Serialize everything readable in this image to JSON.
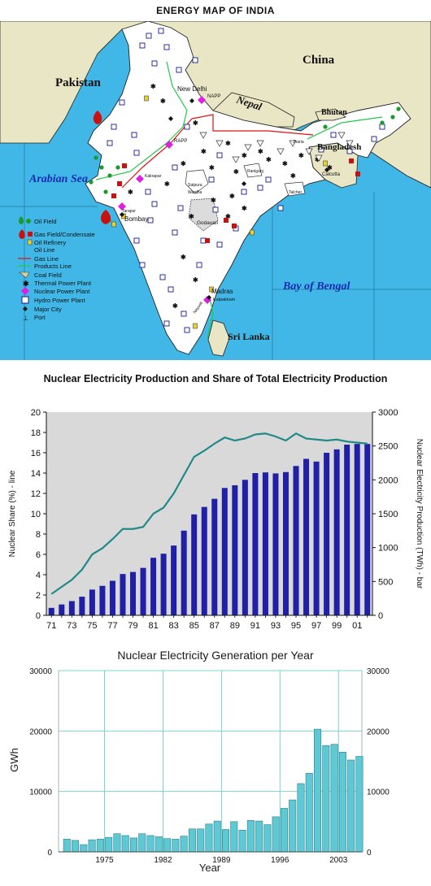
{
  "map": {
    "title": "ENERGY MAP OF INDIA",
    "colors": {
      "sea": "#40b7e6",
      "land": "#ffffff",
      "neighbor": "#e9e6c5",
      "border": "#222222"
    },
    "regions": {
      "pakistan": "Pakistan",
      "china": "China",
      "nepal": "Nepal",
      "bhutan": "Bhutan",
      "bangladesh": "Bangladesh",
      "arabian_sea": "Arabian Sea",
      "bay_of_bengal": "Bay of Bengal",
      "sri_lanka": "Sri Lanka"
    },
    "cities": {
      "new_delhi": "New Delhi",
      "bombay": "Bombay",
      "madras": "Madras",
      "calcutta": "Calcutta"
    },
    "plant_labels": {
      "napp": "NAPP",
      "rapp": "RAPP",
      "kakrapar": "Kakrapar",
      "tarapur": "Tarapur",
      "kalpakkam": "Kalpakkam"
    },
    "places": {
      "godavari": "Godavari",
      "talcher": "Talcher",
      "wardha": "Wardha",
      "satpura": "Satpura",
      "jharia": "Jharia",
      "raniganj": "Raniganj",
      "neyveli": "Neyveli"
    },
    "legend": [
      {
        "icon": "oil-field-icon",
        "label": "Oil Field"
      },
      {
        "icon": "gas-field-icon",
        "label": "Gas Field/Condensate"
      },
      {
        "icon": "oil-refinery-icon",
        "label": "Oil Refinery"
      },
      {
        "icon": "oil-line-icon",
        "label": "Oil Line"
      },
      {
        "icon": "gas-line-icon",
        "label": "Gas Line"
      },
      {
        "icon": "products-line-icon",
        "label": "Products Line"
      },
      {
        "icon": "coal-field-icon",
        "label": "Coal Field"
      },
      {
        "icon": "thermal-plant-icon",
        "label": "Thermal Power Plant"
      },
      {
        "icon": "nuclear-plant-icon",
        "label": "Nuclear Power Plant"
      },
      {
        "icon": "hydro-plant-icon",
        "label": "Hydro Power Plant"
      },
      {
        "icon": "major-city-icon",
        "label": "Major City"
      },
      {
        "icon": "port-icon",
        "label": "Port"
      }
    ]
  },
  "chart_data": [
    {
      "type": "bar",
      "title": "Nuclear Electricity Production and Share of Total Electricity Production",
      "ylabel_left": "Nuclear Share (%) - line",
      "ylabel_right": "Nuclear Electricity Production (TWh) - bar",
      "ylim_left": [
        0,
        20
      ],
      "ylim_right": [
        0,
        3000
      ],
      "yticks_left": [
        "0",
        "2",
        "4",
        "6",
        "8",
        "10",
        "12",
        "14",
        "16",
        "18",
        "20"
      ],
      "yticks_right": [
        "0",
        "500",
        "1000",
        "1500",
        "2000",
        "2500",
        "3000"
      ],
      "xtick_labels": [
        "71",
        "73",
        "75",
        "77",
        "79",
        "81",
        "83",
        "85",
        "87",
        "89",
        "91",
        "93",
        "95",
        "97",
        "99",
        "01"
      ],
      "years": [
        1971,
        1972,
        1973,
        1974,
        1975,
        1976,
        1977,
        1978,
        1979,
        1980,
        1981,
        1982,
        1983,
        1984,
        1985,
        1986,
        1987,
        1988,
        1989,
        1990,
        1991,
        1992,
        1993,
        1994,
        1995,
        1996,
        1997,
        1998,
        1999,
        2000,
        2001,
        2002
      ],
      "bar_values": [
        110,
        160,
        210,
        275,
        380,
        435,
        510,
        610,
        640,
        700,
        850,
        910,
        1030,
        1250,
        1490,
        1600,
        1720,
        1880,
        1920,
        2000,
        2100,
        2110,
        2095,
        2115,
        2205,
        2310,
        2270,
        2400,
        2450,
        2520,
        2530,
        2530
      ],
      "line_values": [
        2.1,
        2.8,
        3.5,
        4.5,
        6.0,
        6.6,
        7.5,
        8.5,
        8.5,
        8.7,
        10.0,
        10.6,
        12.0,
        13.8,
        15.6,
        16.2,
        16.9,
        17.5,
        17.2,
        17.4,
        17.8,
        17.9,
        17.6,
        17.2,
        17.9,
        17.4,
        17.3,
        17.2,
        17.3,
        17.1,
        17.0,
        16.9
      ],
      "series": [
        {
          "name": "Nuclear Share (%) - line",
          "color": "#218a87"
        },
        {
          "name": "Nuclear Electricity Production (TWh) - bar",
          "color": "#1f1fa8"
        }
      ],
      "grid": false
    },
    {
      "type": "bar",
      "title": "Nuclear Electricity Generation per Year",
      "xlabel": "Year",
      "ylabel": "GWh",
      "ylim": [
        0,
        30000
      ],
      "yticks": [
        "0",
        "10000",
        "20000",
        "30000"
      ],
      "xtick_labels": [
        "1975",
        "1982",
        "1989",
        "1996",
        "2003"
      ],
      "x": [
        1970,
        1971,
        1972,
        1973,
        1974,
        1975,
        1976,
        1977,
        1978,
        1979,
        1980,
        1981,
        1982,
        1983,
        1984,
        1985,
        1986,
        1987,
        1988,
        1989,
        1990,
        1991,
        1992,
        1993,
        1994,
        1995,
        1996,
        1997,
        1998,
        1999,
        2000,
        2001,
        2002,
        2003,
        2004,
        2005
      ],
      "values": [
        2100,
        1900,
        1200,
        2000,
        2100,
        2400,
        3000,
        2700,
        2300,
        3000,
        2700,
        2500,
        2200,
        2100,
        2600,
        3800,
        3800,
        4600,
        5100,
        3700,
        5000,
        3600,
        5200,
        5100,
        4500,
        5800,
        7200,
        8600,
        11300,
        13000,
        20300,
        17600,
        17800,
        16500,
        15200,
        15800
      ],
      "color": "#5ec9d5",
      "grid": true
    }
  ]
}
